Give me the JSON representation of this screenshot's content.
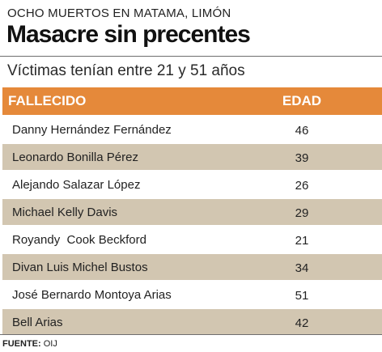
{
  "kicker": "OCHO MUERTOS EN  MATAMA, LIMÓN",
  "headline": "Masacre sin precentes",
  "subtitle": "Víctimas tenían entre 21 y 51 años",
  "table": {
    "headers": {
      "name": "FALLECIDO",
      "age": "EDAD"
    },
    "header_color": "#e5893a",
    "stripe_color": "#d2c6b1",
    "rows": [
      {
        "name": "Danny Hernández Fernández",
        "age": "46"
      },
      {
        "name": "Leonardo Bonilla Pérez",
        "age": "39"
      },
      {
        "name": "Alejando Salazar López",
        "age": "26"
      },
      {
        "name": "Michael Kelly Davis",
        "age": "29"
      },
      {
        "name": "Royandy  Cook Beckford",
        "age": "21"
      },
      {
        "name": "Divan Luis Michel Bustos",
        "age": "34"
      },
      {
        "name": "José Bernardo Montoya Arias",
        "age": "51"
      },
      {
        "name": "Bell Arias",
        "age": "42"
      }
    ]
  },
  "source": {
    "label": "FUENTE:",
    "value": "OIJ"
  }
}
